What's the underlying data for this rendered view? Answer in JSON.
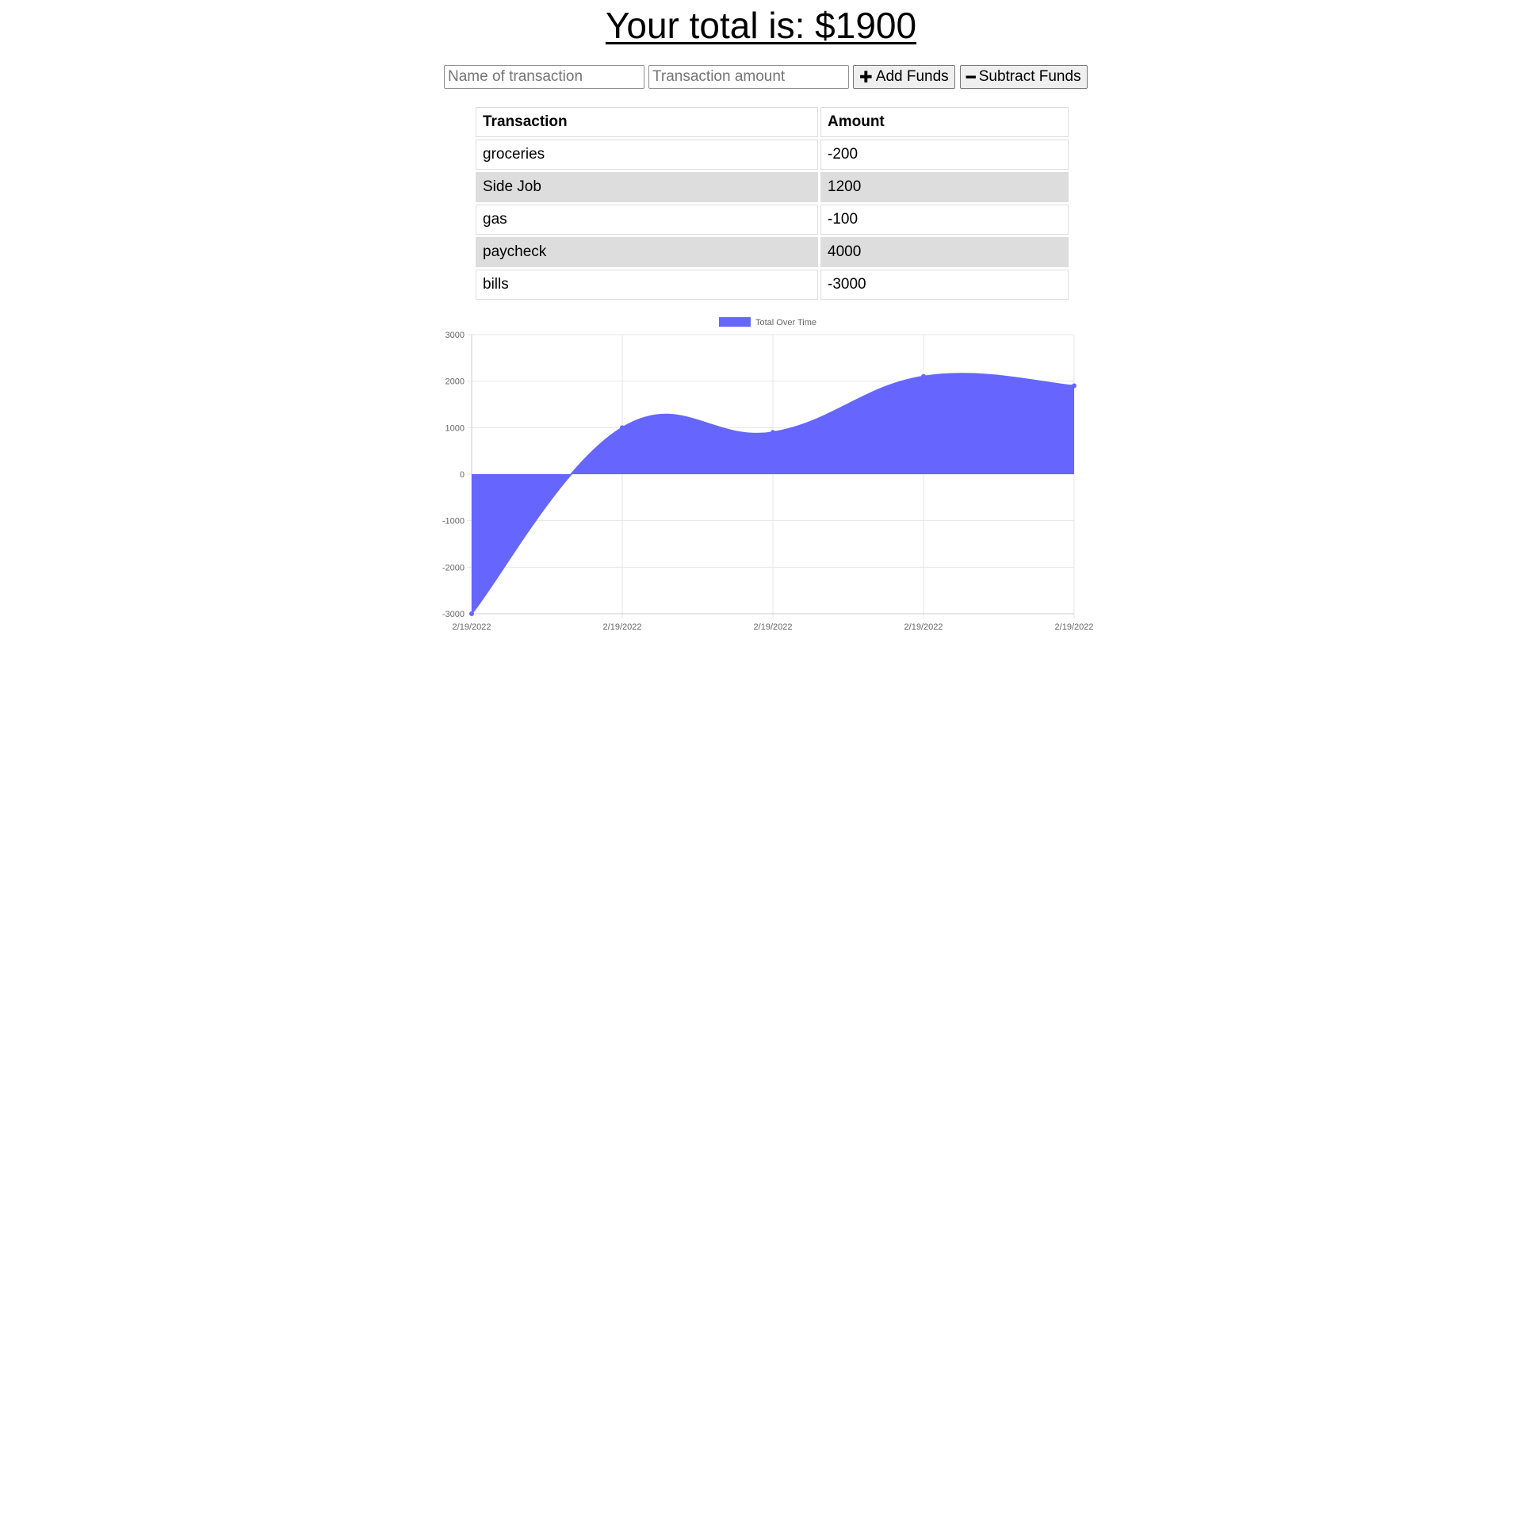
{
  "header": {
    "total_text": "Your total is: $1900"
  },
  "form": {
    "name_placeholder": "Name of transaction",
    "amount_placeholder": "Transaction amount",
    "add_label": "Add Funds",
    "add_icon": "plus-icon",
    "subtract_label": "Subtract Funds",
    "subtract_icon": "minus-icon"
  },
  "table": {
    "headers": [
      "Transaction",
      "Amount"
    ],
    "rows": [
      {
        "name": "groceries",
        "amount": "-200"
      },
      {
        "name": "Side Job",
        "amount": "1200"
      },
      {
        "name": "gas",
        "amount": "-100"
      },
      {
        "name": "paycheck",
        "amount": "4000"
      },
      {
        "name": "bills",
        "amount": "-3000"
      }
    ],
    "shaded_color": "#dddddd"
  },
  "chart_data": {
    "type": "area",
    "x": [
      "2/19/2022",
      "2/19/2022",
      "2/19/2022",
      "2/19/2022",
      "2/19/2022"
    ],
    "series": [
      {
        "name": "Total Over Time",
        "values": [
          -3000,
          1000,
          900,
          2100,
          1900
        ],
        "color": "#6666ff"
      }
    ],
    "yticks": [
      3000,
      2000,
      1000,
      0,
      -1000,
      -2000,
      -3000
    ],
    "ylim": [
      -3000,
      3000
    ],
    "grid": true,
    "legend": "top-center"
  }
}
